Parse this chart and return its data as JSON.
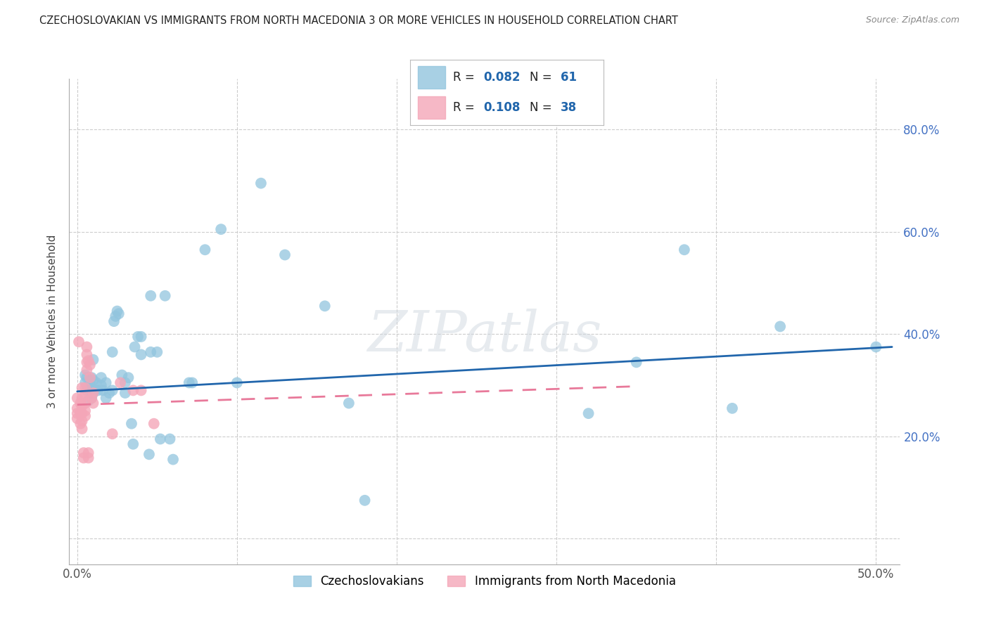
{
  "title": "CZECHOSLOVAKIAN VS IMMIGRANTS FROM NORTH MACEDONIA 3 OR MORE VEHICLES IN HOUSEHOLD CORRELATION CHART",
  "source": "Source: ZipAtlas.com",
  "ylabel": "3 or more Vehicles in Household",
  "xlim": [
    -0.005,
    0.515
  ],
  "ylim": [
    -0.05,
    0.9
  ],
  "blue_R": "0.082",
  "blue_N": "61",
  "pink_R": "0.108",
  "pink_N": "38",
  "blue_scatter": [
    [
      0.005,
      0.32
    ],
    [
      0.005,
      0.305
    ],
    [
      0.006,
      0.29
    ],
    [
      0.007,
      0.27
    ],
    [
      0.006,
      0.315
    ],
    [
      0.008,
      0.305
    ],
    [
      0.008,
      0.29
    ],
    [
      0.009,
      0.275
    ],
    [
      0.009,
      0.315
    ],
    [
      0.009,
      0.295
    ],
    [
      0.01,
      0.31
    ],
    [
      0.01,
      0.285
    ],
    [
      0.01,
      0.35
    ],
    [
      0.012,
      0.305
    ],
    [
      0.013,
      0.29
    ],
    [
      0.015,
      0.315
    ],
    [
      0.015,
      0.3
    ],
    [
      0.016,
      0.29
    ],
    [
      0.018,
      0.305
    ],
    [
      0.018,
      0.275
    ],
    [
      0.02,
      0.285
    ],
    [
      0.022,
      0.29
    ],
    [
      0.022,
      0.365
    ],
    [
      0.023,
      0.425
    ],
    [
      0.024,
      0.435
    ],
    [
      0.025,
      0.445
    ],
    [
      0.026,
      0.44
    ],
    [
      0.028,
      0.32
    ],
    [
      0.03,
      0.305
    ],
    [
      0.03,
      0.285
    ],
    [
      0.032,
      0.315
    ],
    [
      0.034,
      0.225
    ],
    [
      0.035,
      0.185
    ],
    [
      0.036,
      0.375
    ],
    [
      0.038,
      0.395
    ],
    [
      0.04,
      0.395
    ],
    [
      0.04,
      0.36
    ],
    [
      0.045,
      0.165
    ],
    [
      0.046,
      0.365
    ],
    [
      0.046,
      0.475
    ],
    [
      0.05,
      0.365
    ],
    [
      0.052,
      0.195
    ],
    [
      0.055,
      0.475
    ],
    [
      0.058,
      0.195
    ],
    [
      0.06,
      0.155
    ],
    [
      0.07,
      0.305
    ],
    [
      0.072,
      0.305
    ],
    [
      0.08,
      0.565
    ],
    [
      0.09,
      0.605
    ],
    [
      0.1,
      0.305
    ],
    [
      0.115,
      0.695
    ],
    [
      0.13,
      0.555
    ],
    [
      0.155,
      0.455
    ],
    [
      0.17,
      0.265
    ],
    [
      0.18,
      0.075
    ],
    [
      0.32,
      0.245
    ],
    [
      0.35,
      0.345
    ],
    [
      0.38,
      0.565
    ],
    [
      0.41,
      0.255
    ],
    [
      0.44,
      0.415
    ],
    [
      0.5,
      0.375
    ]
  ],
  "pink_scatter": [
    [
      0.0,
      0.275
    ],
    [
      0.0,
      0.255
    ],
    [
      0.0,
      0.245
    ],
    [
      0.0,
      0.235
    ],
    [
      0.001,
      0.385
    ],
    [
      0.002,
      0.265
    ],
    [
      0.002,
      0.245
    ],
    [
      0.002,
      0.225
    ],
    [
      0.003,
      0.295
    ],
    [
      0.003,
      0.275
    ],
    [
      0.003,
      0.26
    ],
    [
      0.003,
      0.245
    ],
    [
      0.003,
      0.23
    ],
    [
      0.003,
      0.215
    ],
    [
      0.004,
      0.168
    ],
    [
      0.004,
      0.158
    ],
    [
      0.005,
      0.295
    ],
    [
      0.005,
      0.28
    ],
    [
      0.005,
      0.265
    ],
    [
      0.005,
      0.25
    ],
    [
      0.005,
      0.24
    ],
    [
      0.006,
      0.375
    ],
    [
      0.006,
      0.36
    ],
    [
      0.006,
      0.345
    ],
    [
      0.006,
      0.33
    ],
    [
      0.007,
      0.348
    ],
    [
      0.007,
      0.168
    ],
    [
      0.007,
      0.158
    ],
    [
      0.008,
      0.34
    ],
    [
      0.008,
      0.315
    ],
    [
      0.009,
      0.275
    ],
    [
      0.01,
      0.285
    ],
    [
      0.01,
      0.265
    ],
    [
      0.022,
      0.205
    ],
    [
      0.027,
      0.305
    ],
    [
      0.035,
      0.29
    ],
    [
      0.04,
      0.29
    ],
    [
      0.048,
      0.225
    ]
  ],
  "blue_line_x": [
    0.0,
    0.51
  ],
  "blue_line_y": [
    0.288,
    0.375
  ],
  "pink_line_x": [
    0.0,
    0.35
  ],
  "pink_line_y": [
    0.262,
    0.298
  ],
  "blue_color": "#92c5de",
  "pink_color": "#f4a6b8",
  "blue_line_color": "#2166ac",
  "pink_line_color": "#e8799a",
  "watermark_text": "ZIPatlas",
  "grid_color": "#cccccc",
  "ytick_color": "#4472c4",
  "xtick_color": "#555555"
}
